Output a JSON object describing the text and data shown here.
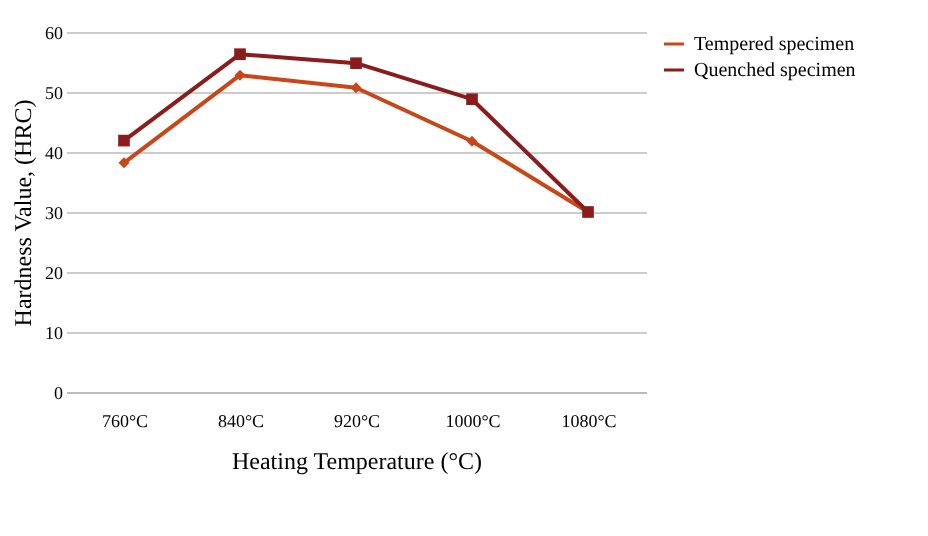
{
  "chart_data": {
    "type": "line",
    "xlabel": "Heating Temperature (°C)",
    "ylabel": "Hardness Value, (HRC)",
    "categories": [
      "760°C",
      "840°C",
      "920°C",
      "1000°C",
      "1080°C"
    ],
    "series": [
      {
        "name": "Tempered specimen",
        "color": "#c8471a",
        "marker": "diamond",
        "values": [
          38.2,
          52.8,
          50.7,
          41.8,
          30
        ]
      },
      {
        "name": "Quenched specimen",
        "color": "#8b1c1c",
        "marker": "square",
        "values": [
          41.9,
          56.3,
          54.8,
          48.8,
          30
        ]
      }
    ],
    "ylim": [
      0,
      60
    ],
    "yticks": [
      0,
      10,
      20,
      30,
      40,
      50,
      60
    ],
    "grid": "y",
    "legend": "right",
    "line_style": "solid"
  }
}
